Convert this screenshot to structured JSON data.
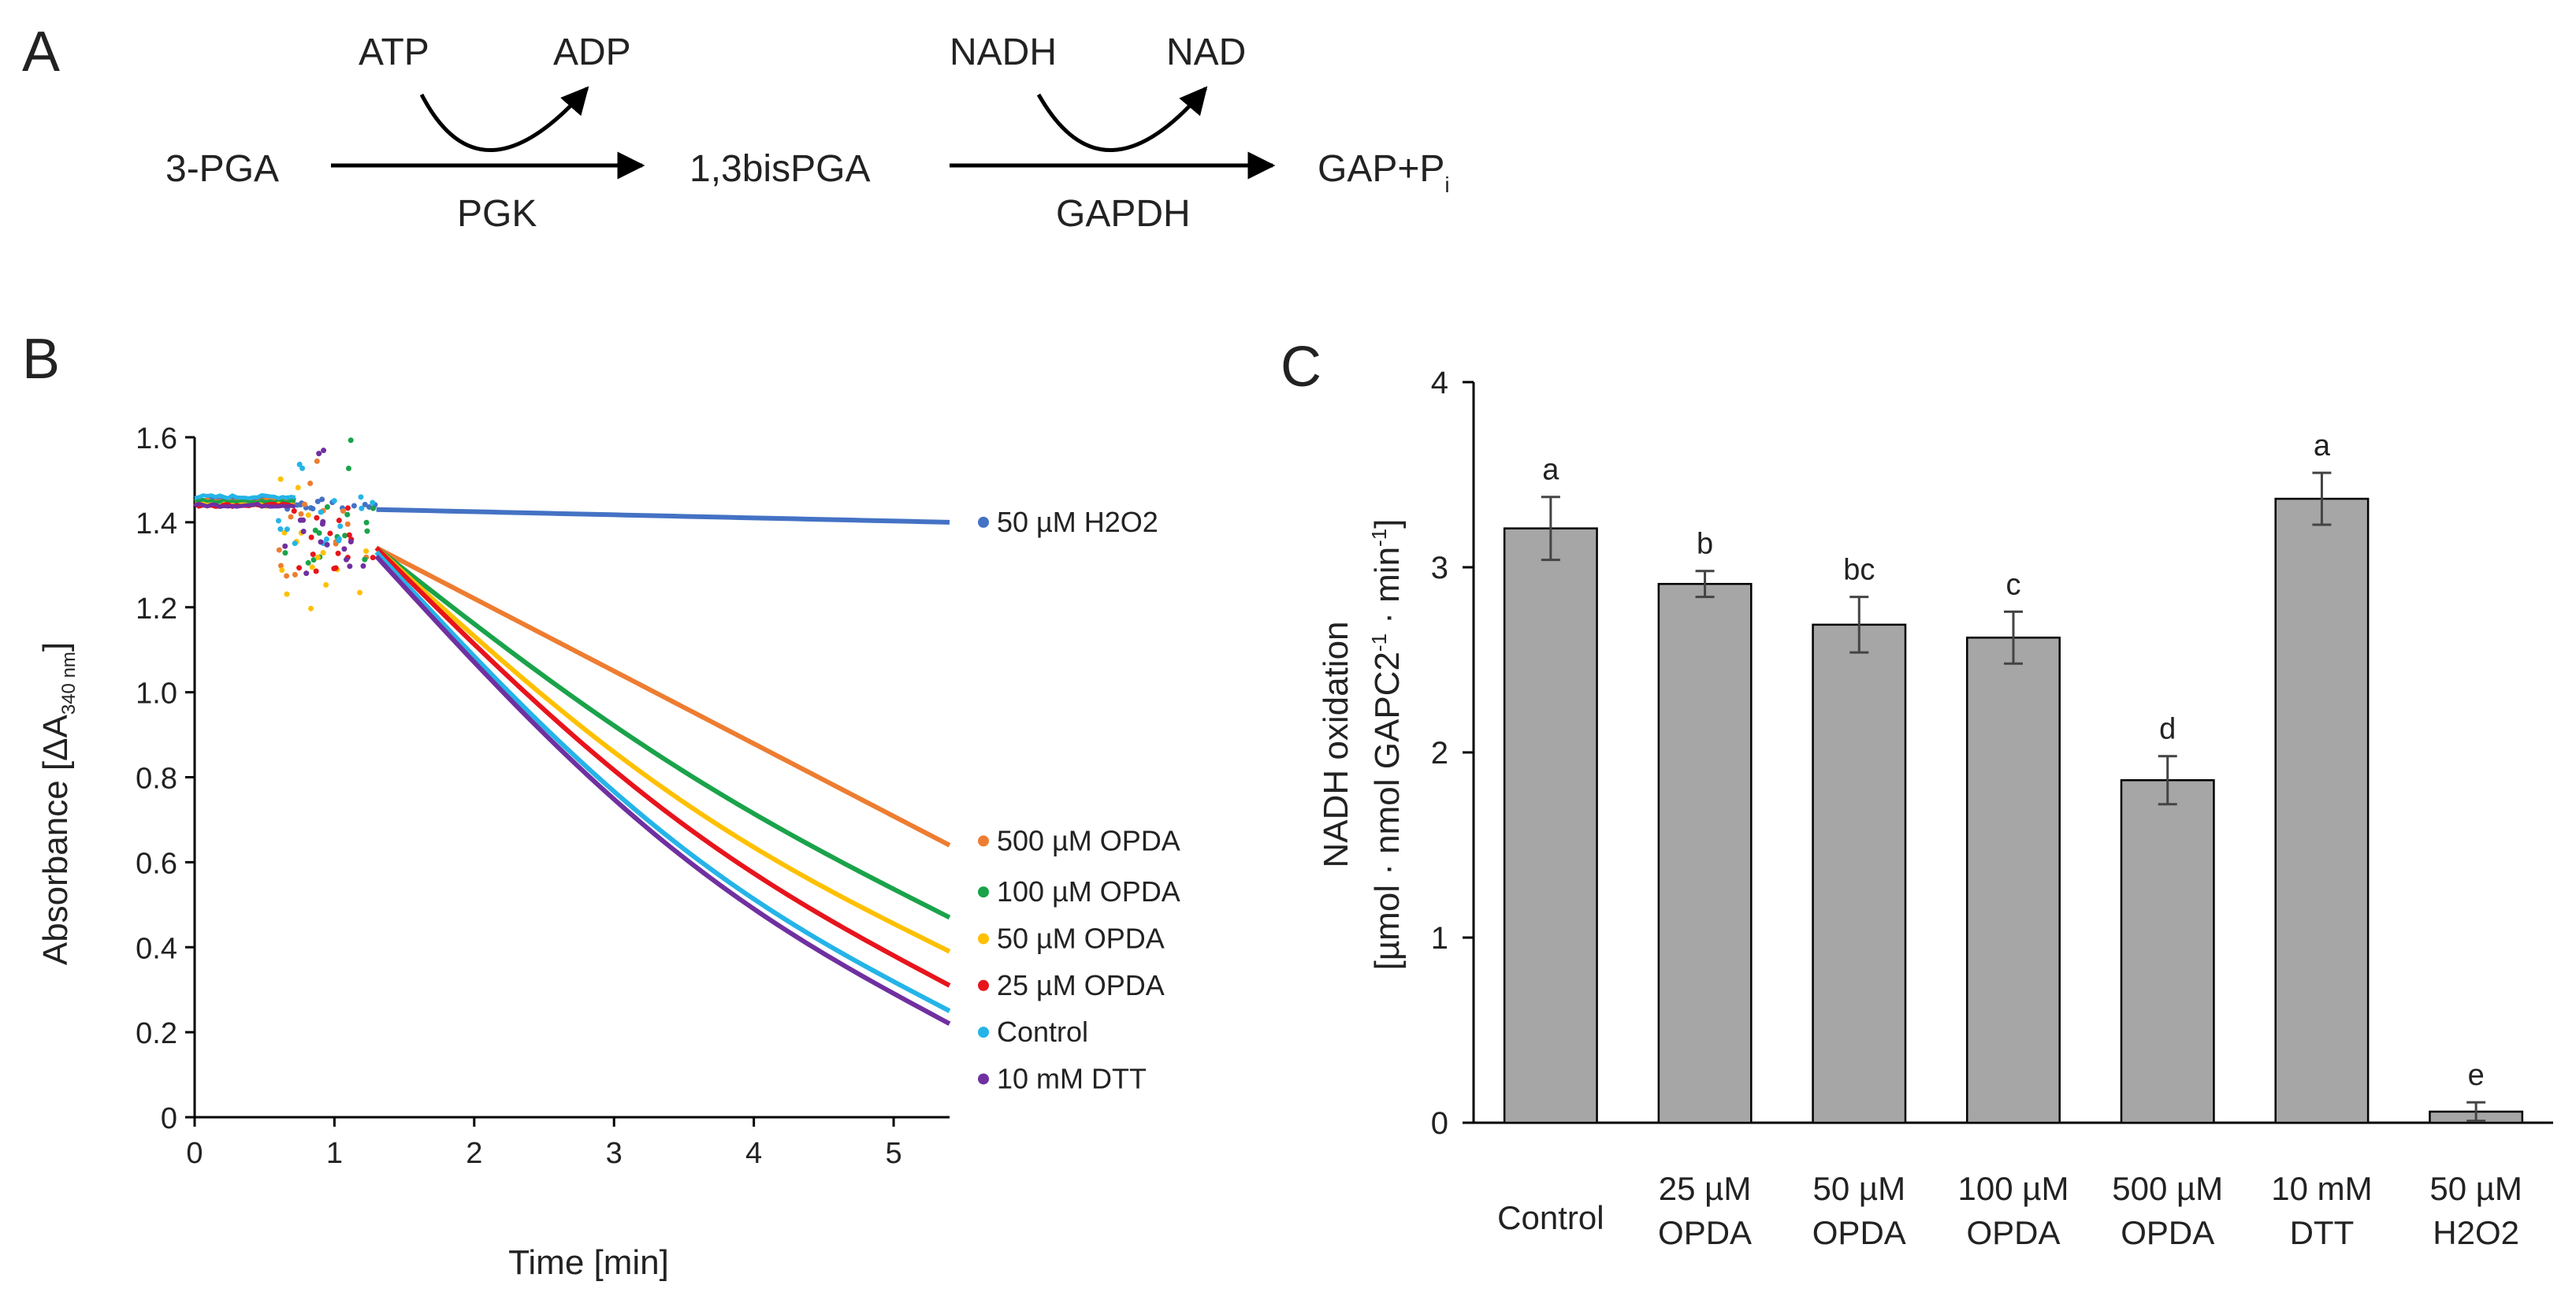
{
  "panel_a": {
    "label": "A",
    "substrate": "3-PGA",
    "intermediate": "1,3bisPGA",
    "product": "GAP+P",
    "product_sub": "i",
    "enzyme1": "PGK",
    "enzyme1_in": "ATP",
    "enzyme1_out": "ADP",
    "enzyme2": "GAPDH",
    "enzyme2_in": "NADH",
    "enzyme2_out": "NAD"
  },
  "chart_data": [
    {
      "panel": "B",
      "type": "line",
      "xlabel": "Time [min]",
      "ylabel": "Absorbance [ΔA",
      "ylabel_sub": "340 nm",
      "ylabel_end": "]",
      "xlim": [
        0,
        5.4
      ],
      "ylim": [
        0,
        1.6
      ],
      "xticks": [
        0,
        1,
        2,
        3,
        4,
        5
      ],
      "yticks": [
        0,
        0.2,
        0.4,
        0.6,
        0.8,
        1.0,
        1.2,
        1.4,
        1.6
      ],
      "ytick_labels": [
        "0",
        "0.2",
        "0.4",
        "0.6",
        "0.8",
        "1.0",
        "1.2",
        "1.4",
        "1.6"
      ],
      "series": [
        {
          "name": "50 µM H2O2",
          "color": "#4472c4",
          "start": 1.455,
          "low": 1.43,
          "start_noise": 0.0,
          "x": [
            1.3,
            5.4
          ],
          "y": [
            1.43,
            1.4
          ],
          "curv": 0.0
        },
        {
          "name": "500 µM OPDA",
          "color": "#ed7d31",
          "start": 1.45,
          "low": 1.27,
          "start_noise": 0.02,
          "x": [
            1.3,
            5.4
          ],
          "y": [
            1.34,
            0.64
          ],
          "curv": 0.0
        },
        {
          "name": "100 µM OPDA",
          "color": "#1aa34a",
          "start": 1.45,
          "low": 1.3,
          "start_noise": 0.05,
          "x": [
            1.3,
            5.4
          ],
          "y": [
            1.34,
            0.47
          ],
          "curv": 0.06
        },
        {
          "name": "50 µM OPDA",
          "color": "#ffc000",
          "start": 1.44,
          "low": 1.19,
          "start_noise": 0.01,
          "x": [
            1.3,
            5.4
          ],
          "y": [
            1.34,
            0.39
          ],
          "curv": 0.09
        },
        {
          "name": "25 µM OPDA",
          "color": "#e8141c",
          "start": 1.44,
          "low": 1.27,
          "start_noise": 0.0,
          "x": [
            1.3,
            5.4
          ],
          "y": [
            1.34,
            0.31
          ],
          "curv": 0.1
        },
        {
          "name": "Control",
          "color": "#25b4e8",
          "start": 1.46,
          "low": 1.35,
          "start_noise": 0.01,
          "x": [
            1.3,
            5.4
          ],
          "y": [
            1.33,
            0.25
          ],
          "curv": 0.12
        },
        {
          "name": "10 mM DTT",
          "color": "#7030a0",
          "start": 1.44,
          "low": 1.28,
          "start_noise": 0.04,
          "x": [
            1.3,
            5.4
          ],
          "y": [
            1.32,
            0.22
          ],
          "curv": 0.12
        }
      ]
    },
    {
      "panel": "C",
      "type": "bar",
      "ylabel": "NADH oxidation",
      "ylabel2": "[µmol · nmol GAPC2",
      "ylabel2_sup": "-1",
      "ylabel2_mid": " · min",
      "ylabel2_sup2": "-1",
      "ylabel2_end": "]",
      "ylim": [
        0,
        4
      ],
      "yticks": [
        0,
        1,
        2,
        3,
        4
      ],
      "bar_color": "#a6a6a6",
      "categories": [
        [
          "Control"
        ],
        [
          "25 µM",
          "OPDA"
        ],
        [
          "50 µM",
          "OPDA"
        ],
        [
          "100 µM",
          "OPDA"
        ],
        [
          "500 µM",
          "OPDA"
        ],
        [
          "10 mM",
          "DTT"
        ],
        [
          "50 µM",
          "H2O2"
        ]
      ],
      "values": [
        3.21,
        2.91,
        2.69,
        2.62,
        1.85,
        3.37,
        0.06
      ],
      "errors": [
        0.17,
        0.07,
        0.15,
        0.14,
        0.13,
        0.14,
        0.05
      ],
      "significance": [
        "a",
        "b",
        "bc",
        "c",
        "d",
        "a",
        "e"
      ]
    }
  ]
}
